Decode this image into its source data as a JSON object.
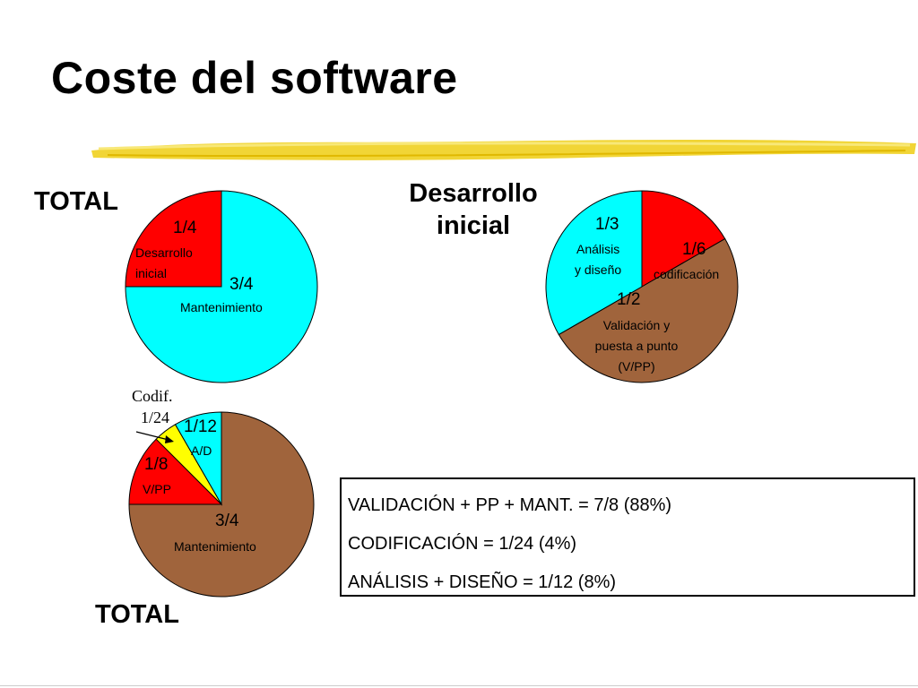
{
  "slide": {
    "title": "Coste del software"
  },
  "chart_data": [
    {
      "type": "pie",
      "heading": "TOTAL",
      "slices": [
        {
          "fraction_label": "3/4",
          "label": "Mantenimiento",
          "value": 0.75,
          "color": "#00ffff"
        },
        {
          "fraction_label": "1/4",
          "label_lines": [
            "Desarrollo",
            "inicial"
          ],
          "value": 0.25,
          "color": "#ff0000"
        }
      ]
    },
    {
      "type": "pie",
      "heading_lines": [
        "Desarrollo",
        "inicial"
      ],
      "slices": [
        {
          "fraction_label": "1/6",
          "label": "codificación",
          "value": 0.1667,
          "color": "#ff0000"
        },
        {
          "fraction_label": "1/2",
          "label_lines": [
            "Validación y",
            "puesta a punto",
            "(V/PP)"
          ],
          "value": 0.5,
          "color": "#a0643c"
        },
        {
          "fraction_label": "1/3",
          "label_lines": [
            "Análisis",
            "y diseño"
          ],
          "value": 0.3333,
          "color": "#00ffff"
        }
      ]
    },
    {
      "type": "pie",
      "heading": "TOTAL",
      "slices": [
        {
          "fraction_label": "3/4",
          "label": "Mantenimiento",
          "value": 0.75,
          "color": "#a0643c"
        },
        {
          "fraction_label": "1/8",
          "label": "V/PP",
          "value": 0.125,
          "color": "#ff0000"
        },
        {
          "fraction_label": "1/24",
          "label": "Codif.",
          "value": 0.04167,
          "color": "#ffff00"
        },
        {
          "fraction_label": "1/12",
          "label": "A/D",
          "value": 0.08333,
          "color": "#00ffff"
        }
      ]
    }
  ],
  "summary": {
    "lines": [
      "VALIDACIÓN + PP + MANT. = 7/8 (88%)",
      "CODIFICACIÓN = 1/24 (4%)",
      "ANÁLISIS + DISEÑO = 1/12 (8%)"
    ]
  },
  "colors": {
    "stroke": "#000000",
    "highlight": "#f0d020"
  }
}
